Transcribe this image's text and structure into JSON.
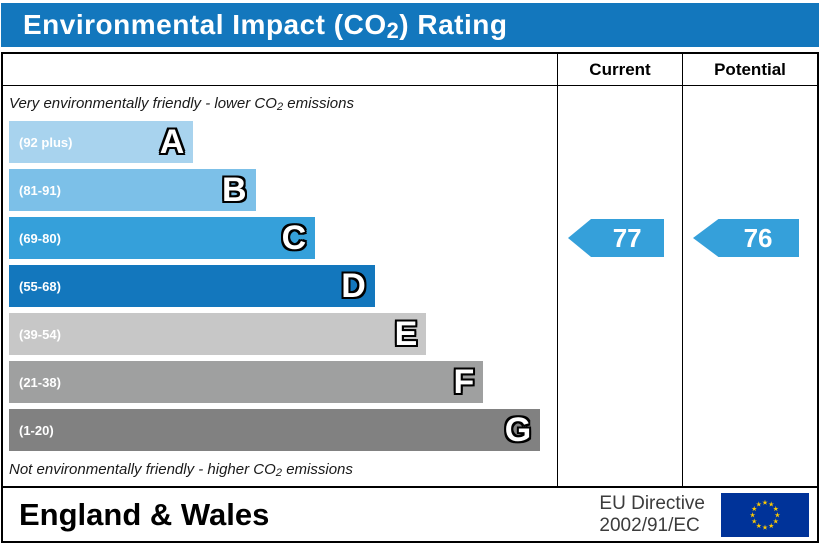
{
  "title": {
    "pre": "Environmental Impact (CO",
    "sub": "2",
    "post": ") Rating"
  },
  "header": {
    "current": "Current",
    "potential": "Potential"
  },
  "notes": {
    "top": {
      "pre": "Very environmentally friendly - lower CO",
      "sub": "2",
      "post": " emissions"
    },
    "bottom": {
      "pre": "Not environmentally friendly - higher CO",
      "sub": "2",
      "post": " emissions"
    }
  },
  "colors": {
    "title_bar": "#1377bd",
    "border": "#000000"
  },
  "chart_data": {
    "type": "bar",
    "title": "Environmental Impact (CO2) Rating",
    "orientation": "horizontal",
    "bands": [
      {
        "letter": "A",
        "range": "(92 plus)",
        "color": "#a8d3ee",
        "width_pct": 34
      },
      {
        "letter": "B",
        "range": "(81-91)",
        "color": "#7cc0e8",
        "width_pct": 45.5
      },
      {
        "letter": "C",
        "range": "(69-80)",
        "color": "#35a0da",
        "width_pct": 56.5
      },
      {
        "letter": "D",
        "range": "(55-68)",
        "color": "#1377bd",
        "width_pct": 67.5
      },
      {
        "letter": "E",
        "range": "(39-54)",
        "color": "#c7c7c7",
        "width_pct": 77
      },
      {
        "letter": "F",
        "range": "(21-38)",
        "color": "#9fa0a0",
        "width_pct": 87.5
      },
      {
        "letter": "G",
        "range": "(1-20)",
        "color": "#818181",
        "width_pct": 98
      }
    ],
    "current": {
      "value": "77",
      "band": "C",
      "color": "#35a0da"
    },
    "potential": {
      "value": "76",
      "band": "C",
      "color": "#35a0da"
    }
  },
  "footer": {
    "region": "England & Wales",
    "directive_line1": "EU Directive",
    "directive_line2": "2002/91/EC",
    "eu_flag": {
      "bg": "#003399",
      "star": "#ffcc00"
    }
  }
}
